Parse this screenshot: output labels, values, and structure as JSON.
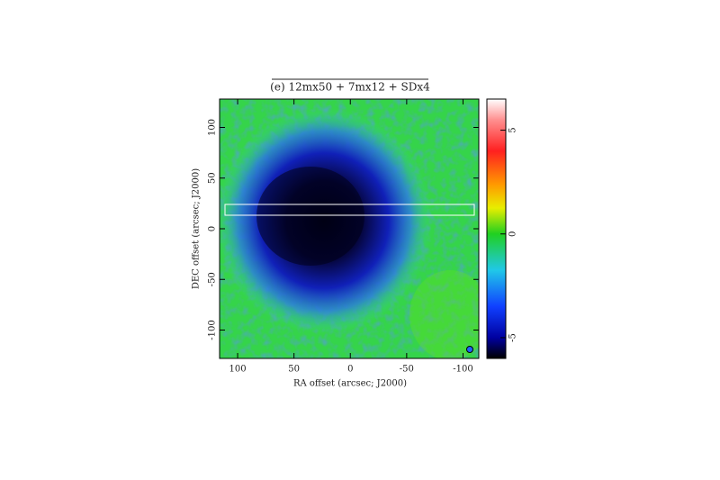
{
  "chart_data": {
    "type": "heatmap",
    "title": "(e) 12mx50 + 7mx12 + SDx4",
    "x_label": "RA offset (arcsec; J2000)",
    "y_label": "DEC offset (arcsec; J2000)",
    "xlim": [
      116,
      -114
    ],
    "xticks": [
      100,
      50,
      0,
      -50,
      -100
    ],
    "ylim": [
      -128,
      128
    ],
    "yticks": [
      -100,
      -50,
      0,
      50,
      100
    ],
    "colorbar": {
      "lim": [
        -6,
        6.5
      ],
      "ticks": [
        -5,
        0,
        5
      ]
    }
  }
}
